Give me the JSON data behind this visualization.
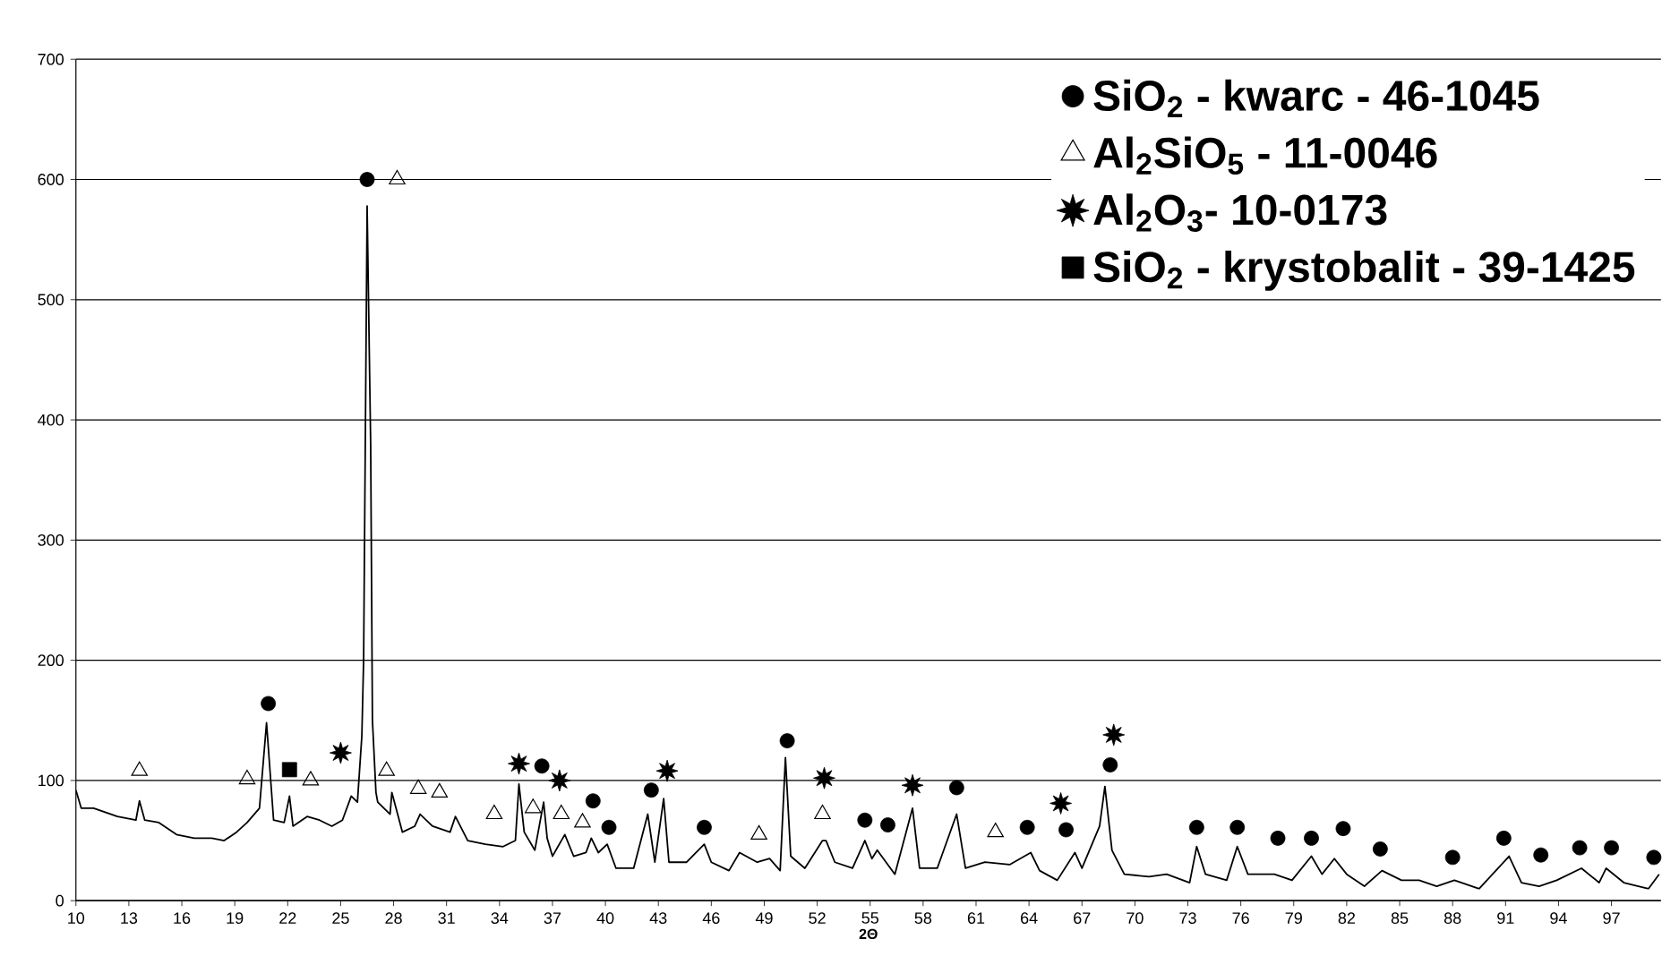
{
  "chart_data": {
    "type": "line",
    "xlabel": "2Θ",
    "xlim": [
      10,
      99.8
    ],
    "xticks": [
      10,
      13,
      16,
      19,
      22,
      25,
      28,
      31,
      34,
      37,
      40,
      43,
      46,
      49,
      52,
      55,
      58,
      61,
      64,
      67,
      70,
      73,
      76,
      79,
      82,
      85,
      88,
      91,
      94,
      97
    ],
    "ylim": [
      0,
      700
    ],
    "yticks": [
      0,
      100,
      200,
      300,
      400,
      500,
      600,
      700
    ],
    "grid": "y",
    "legend": "top right",
    "series": [
      {
        "color": "#000000",
        "x": [
          10,
          10.3,
          11,
          12.35,
          13.4,
          13.6,
          13.9,
          14.7,
          15.7,
          16.7,
          17.7,
          18.4,
          19.1,
          19.7,
          20.4,
          20.8,
          21.2,
          21.8,
          22.1,
          22.3,
          23.1,
          23.8,
          24.5,
          25.1,
          25.6,
          25.95,
          26.2,
          26.3,
          26.5,
          26.7,
          26.8,
          27.0,
          27.1,
          27.8,
          27.9,
          28.5,
          29.2,
          29.5,
          30.2,
          31.2,
          31.5,
          32.2,
          33.2,
          34.2,
          34.9,
          35.1,
          35.4,
          36.0,
          36.5,
          36.7,
          37.0,
          37.7,
          38.2,
          38.9,
          39.2,
          39.6,
          40.1,
          40.6,
          41.6,
          42.4,
          42.8,
          43.3,
          43.6,
          44.6,
          45.6,
          46.0,
          47.0,
          47.6,
          48.6,
          49.3,
          49.9,
          50.2,
          50.5,
          51.3,
          52.3,
          52.5,
          53.0,
          54.0,
          54.7,
          55.1,
          55.4,
          56.4,
          57.4,
          57.8,
          58.8,
          59.9,
          60.4,
          61.5,
          62.9,
          64.1,
          64.6,
          65.6,
          66.6,
          67.0,
          68.0,
          68.3,
          68.7,
          69.4,
          70.8,
          71.8,
          73.1,
          73.5,
          74.0,
          75.2,
          75.8,
          76.4,
          77.9,
          78.9,
          80.0,
          80.6,
          81.3,
          82.0,
          83.0,
          84.0,
          85.1,
          86.1,
          87.1,
          88.1,
          89.5,
          91.2,
          91.9,
          92.9,
          93.9,
          95.3,
          96.3,
          96.7,
          97.7,
          99.1,
          99.7
        ],
        "values": [
          92,
          77,
          77,
          70,
          67,
          83,
          67,
          65,
          55,
          52,
          52,
          50,
          57,
          65,
          77,
          148,
          67,
          65,
          87,
          62,
          70,
          67,
          62,
          67,
          87,
          82,
          137,
          200,
          578,
          380,
          150,
          90,
          82,
          72,
          90,
          57,
          62,
          72,
          62,
          57,
          70,
          50,
          47,
          45,
          50,
          97,
          57,
          42,
          82,
          52,
          37,
          55,
          37,
          40,
          52,
          40,
          47,
          27,
          27,
          72,
          32,
          85,
          32,
          32,
          47,
          32,
          25,
          40,
          32,
          35,
          25,
          119,
          37,
          27,
          50,
          50,
          32,
          27,
          50,
          35,
          42,
          22,
          77,
          27,
          27,
          72,
          27,
          32,
          30,
          40,
          25,
          17,
          40,
          27,
          62,
          95,
          42,
          22,
          20,
          22,
          15,
          45,
          22,
          17,
          45,
          22,
          22,
          17,
          37,
          22,
          35,
          22,
          12,
          25,
          17,
          17,
          12,
          17,
          10,
          37,
          15,
          12,
          17,
          27,
          15,
          27,
          15,
          10,
          22
        ]
      },
      {
        "type": "scatter",
        "name": "SiO$_{2}$ - kwarc - 46-1045",
        "color": "#000000",
        "marker": "circle",
        "x": [
          26.5,
          20.9,
          36.4,
          39.3,
          40.2,
          42.6,
          45.6,
          50.3,
          54.7,
          56.0,
          59.9,
          63.9,
          66.1,
          68.6,
          73.5,
          75.8,
          78.1,
          80.0,
          81.8,
          83.9,
          88.0,
          90.9,
          93.0,
          95.2,
          97.0,
          99.4
        ],
        "values": [
          600,
          164,
          112,
          83,
          61,
          92,
          61,
          133,
          67,
          63,
          94,
          61,
          59,
          113,
          61,
          61,
          52,
          52,
          60,
          43,
          36,
          52,
          38,
          44,
          44,
          36
        ]
      },
      {
        "type": "scatter",
        "name": "Al$_{2}$SiO$_{5}$ -  11-0046",
        "color": "#000000",
        "marker": "triangle",
        "x": [
          28.2,
          13.6,
          19.7,
          23.3,
          27.6,
          29.4,
          30.6,
          33.7,
          35.9,
          37.5,
          38.7,
          48.7,
          52.3,
          62.1
        ],
        "values": [
          600,
          108,
          101,
          100,
          108,
          93,
          90,
          72,
          77,
          72,
          65,
          55,
          72,
          57
        ]
      },
      {
        "type": "scatter",
        "name": "Al$_{2}$O$_{3}$-  10-0173",
        "color": "#000000",
        "marker": "star",
        "x": [
          25.0,
          35.1,
          37.4,
          43.5,
          52.4,
          57.4,
          65.8,
          68.8
        ],
        "values": [
          123,
          114,
          100,
          108,
          102,
          96,
          81,
          138
        ]
      },
      {
        "type": "scatter",
        "name": "SiO$_{2}$ - krystobalit - 39-1425",
        "color": "#000000",
        "marker": "square",
        "x": [
          22.1
        ],
        "values": [
          109
        ]
      }
    ]
  }
}
